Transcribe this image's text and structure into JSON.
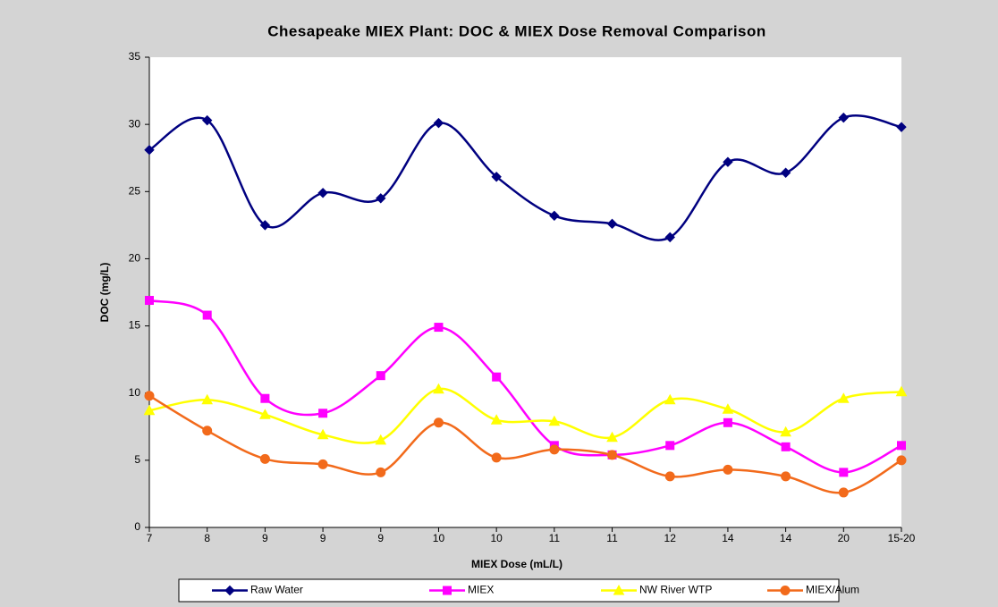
{
  "chart_data": {
    "type": "line",
    "smooth": true,
    "title": "Chesapeake MIEX Plant: DOC & MIEX Dose Removal Comparison",
    "x_label": "MIEX Dose (mL/L)",
    "y_label": "DOC (mg/L)",
    "categories": [
      "7",
      "8",
      "9",
      "9",
      "9",
      "10",
      "10",
      "11",
      "11",
      "12",
      "14",
      "14",
      "20",
      "15-20"
    ],
    "series": [
      {
        "name": "Raw Water",
        "color": "#000080",
        "marker": "diamond",
        "values": [
          28.1,
          30.3,
          22.5,
          24.9,
          24.5,
          30.1,
          26.1,
          23.2,
          22.6,
          21.6,
          27.2,
          26.4,
          30.5,
          29.8
        ]
      },
      {
        "name": "MIEX",
        "color": "#ff00ff",
        "marker": "square",
        "values": [
          16.9,
          15.8,
          9.6,
          8.5,
          11.3,
          14.9,
          11.2,
          6.1,
          5.4,
          6.1,
          7.8,
          6.0,
          4.1,
          6.1
        ]
      },
      {
        "name": "NW River WTP",
        "color": "#ffff00",
        "marker": "triangle",
        "values": [
          8.7,
          9.5,
          8.4,
          6.9,
          6.5,
          10.3,
          8.0,
          7.9,
          6.7,
          9.5,
          8.8,
          7.1,
          9.6,
          10.1
        ]
      },
      {
        "name": "MIEX/Alum",
        "color": "#f26a1b",
        "marker": "circle",
        "values": [
          9.8,
          7.2,
          5.1,
          4.7,
          4.1,
          7.8,
          5.2,
          5.8,
          5.4,
          3.8,
          4.3,
          3.8,
          2.6,
          5.0
        ]
      }
    ],
    "ylim": [
      0,
      35
    ],
    "yticks": [
      0,
      5,
      10,
      15,
      20,
      25,
      30,
      35
    ],
    "grid": false,
    "legend": "bottom"
  }
}
